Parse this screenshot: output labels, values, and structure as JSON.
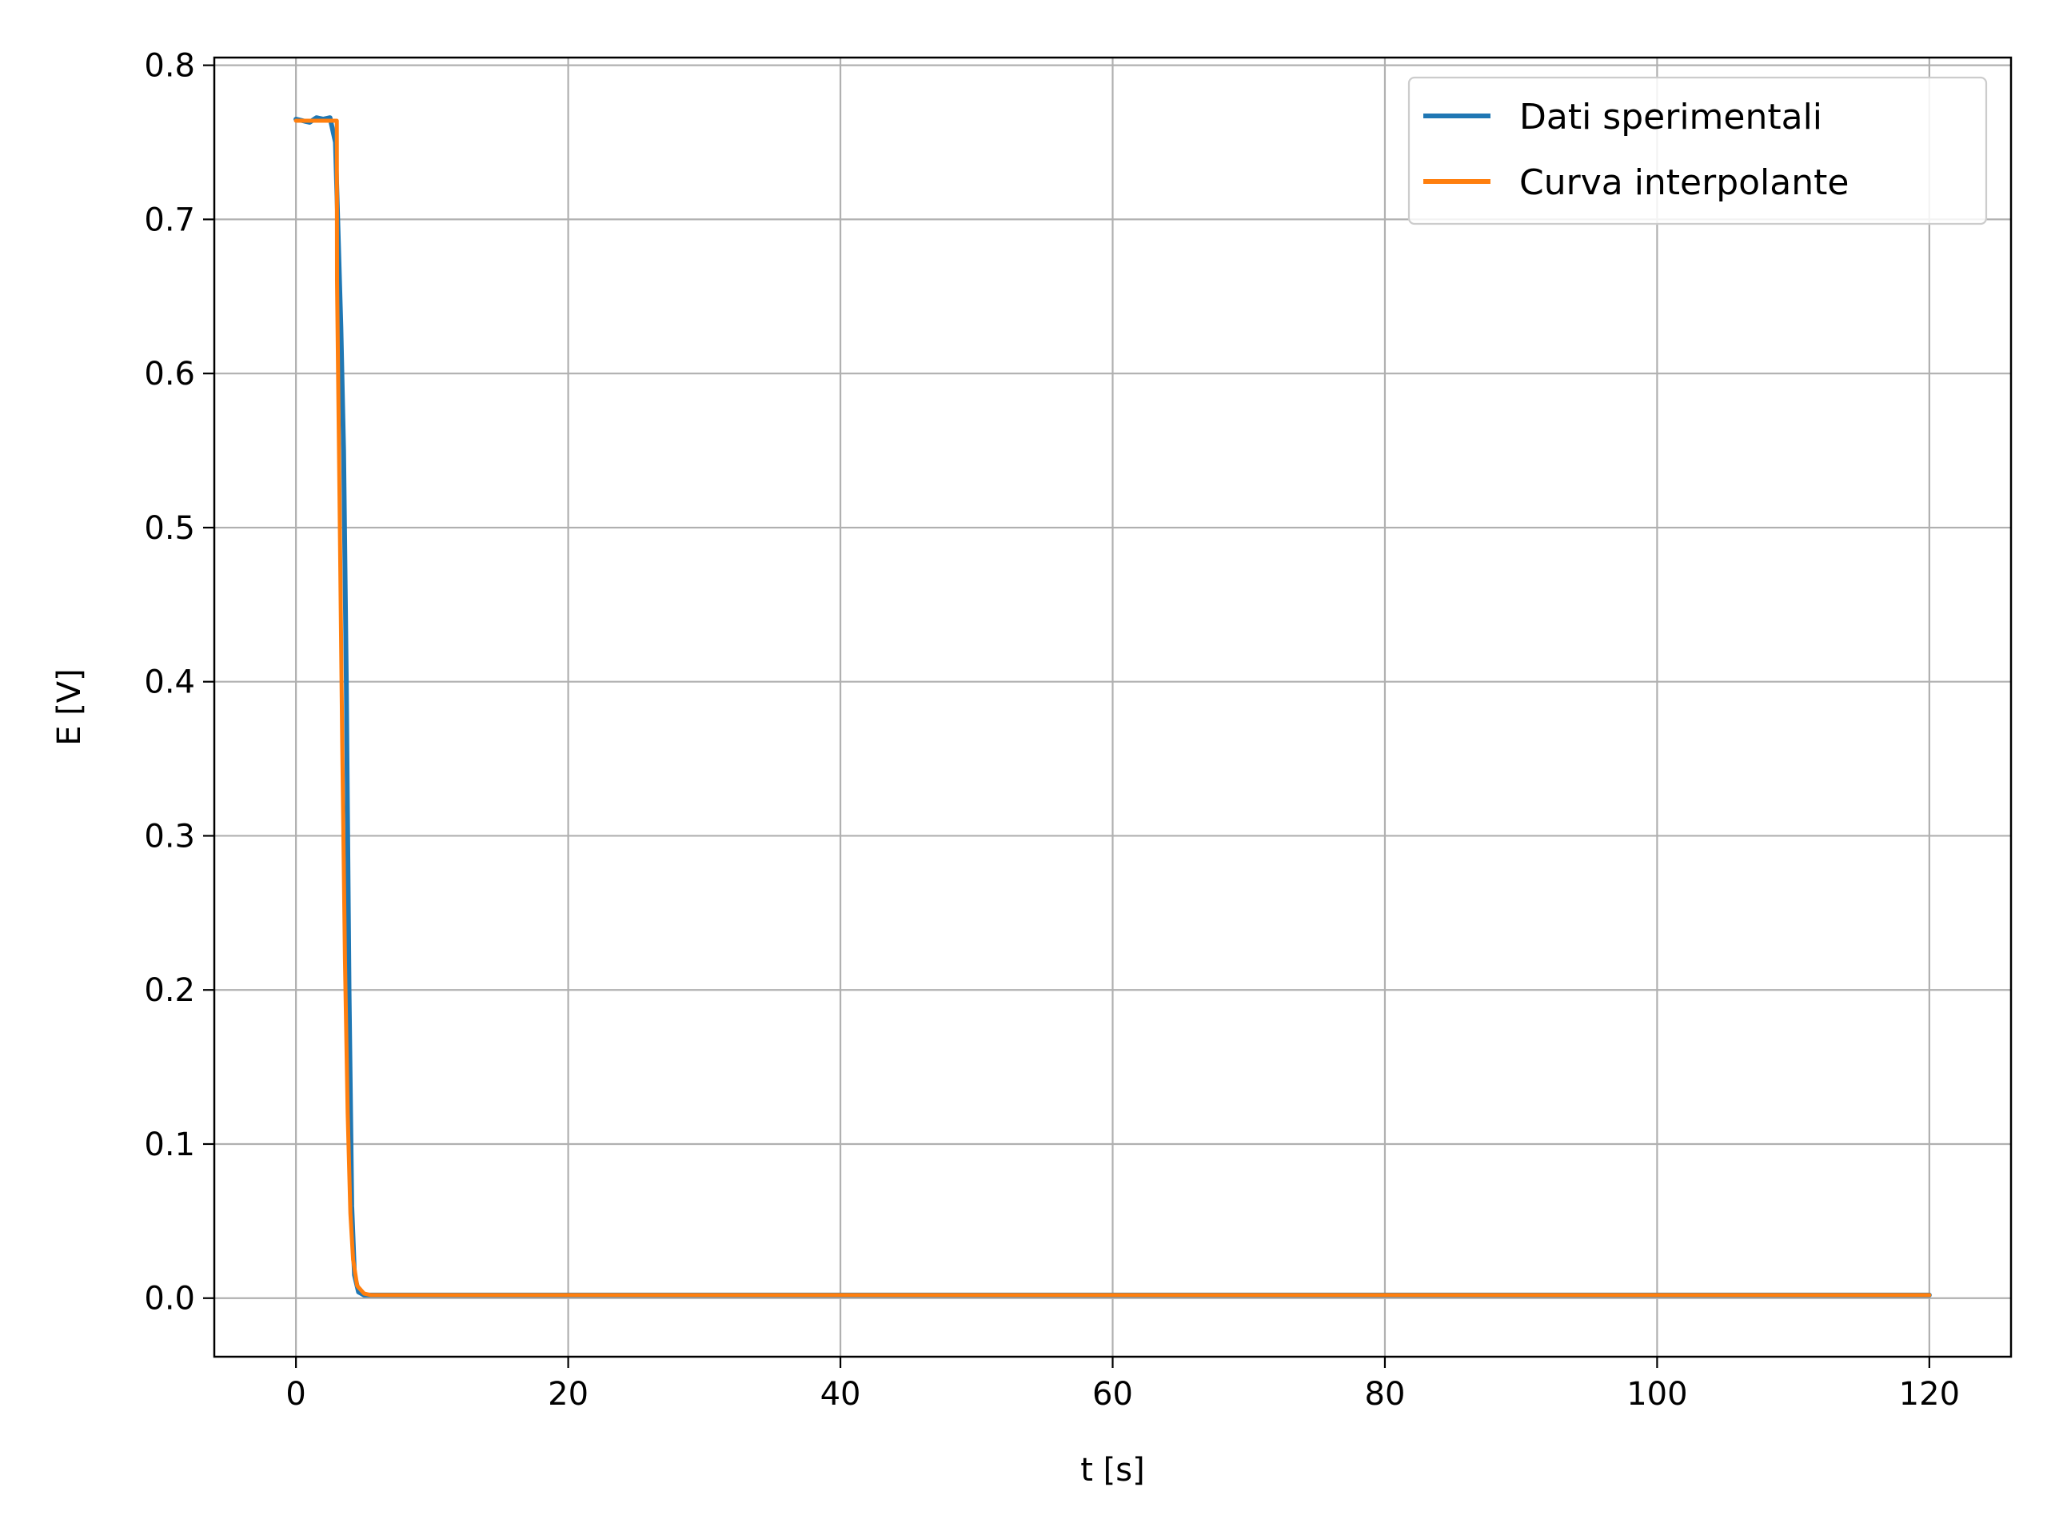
{
  "chart_data": {
    "type": "line",
    "xlabel": "t [s]",
    "ylabel": "E [V]",
    "xlim": [
      -6,
      126
    ],
    "ylim": [
      -0.038,
      0.805
    ],
    "xticks": [
      0,
      20,
      40,
      60,
      80,
      100,
      120
    ],
    "yticks": [
      0.0,
      0.1,
      0.2,
      0.3,
      0.4,
      0.5,
      0.6,
      0.7,
      0.8
    ],
    "xtick_labels": [
      "0",
      "20",
      "40",
      "60",
      "80",
      "100",
      "120"
    ],
    "ytick_labels": [
      "0.0",
      "0.1",
      "0.2",
      "0.3",
      "0.4",
      "0.5",
      "0.6",
      "0.7",
      "0.8"
    ],
    "grid": true,
    "legend_position": "top-right",
    "series": [
      {
        "name": "Dati sperimentali",
        "color": "#1f77b4",
        "x": [
          0,
          0.5,
          1,
          1.5,
          2,
          2.5,
          2.9,
          3.1,
          3.3,
          3.5,
          3.7,
          3.9,
          4.1,
          4.3,
          4.6,
          5.0,
          5.5,
          6,
          8,
          10,
          15,
          20,
          30,
          40,
          50,
          60,
          70,
          80,
          90,
          100,
          110,
          120
        ],
        "y": [
          0.765,
          0.764,
          0.763,
          0.766,
          0.765,
          0.766,
          0.75,
          0.69,
          0.63,
          0.55,
          0.4,
          0.2,
          0.06,
          0.015,
          0.004,
          0.002,
          0.002,
          0.002,
          0.002,
          0.002,
          0.002,
          0.002,
          0.002,
          0.002,
          0.002,
          0.002,
          0.002,
          0.002,
          0.002,
          0.002,
          0.002,
          0.002
        ]
      },
      {
        "name": "Curva interpolante",
        "color": "#ff7f0e",
        "x": [
          0,
          1,
          2,
          3.0,
          3.02,
          3.2,
          3.4,
          3.6,
          3.8,
          4.0,
          4.2,
          4.5,
          5.0,
          5.5,
          6,
          10,
          20,
          40,
          60,
          80,
          100,
          120
        ],
        "y": [
          0.764,
          0.764,
          0.764,
          0.764,
          0.66,
          0.52,
          0.36,
          0.22,
          0.12,
          0.055,
          0.025,
          0.008,
          0.003,
          0.002,
          0.002,
          0.002,
          0.002,
          0.002,
          0.002,
          0.002,
          0.002,
          0.002
        ]
      }
    ]
  }
}
